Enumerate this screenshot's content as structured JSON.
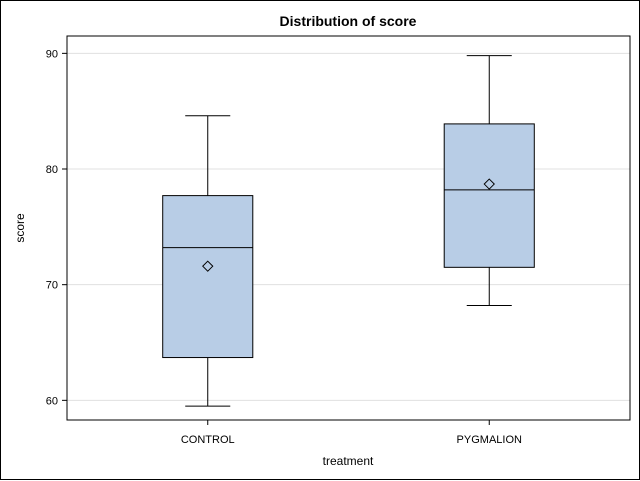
{
  "chart_data": {
    "type": "box",
    "title": "Distribution of score",
    "xlabel": "treatment",
    "ylabel": "score",
    "ylim": [
      58.3,
      91.5
    ],
    "yticks": [
      60,
      70,
      80,
      90
    ],
    "grid": true,
    "categories": [
      "CONTROL",
      "PYGMALION"
    ],
    "boxes": [
      {
        "category": "CONTROL",
        "min": 59.5,
        "q1": 63.7,
        "median": 73.2,
        "q3": 77.7,
        "max": 84.6,
        "mean": 71.6
      },
      {
        "category": "PYGMALION",
        "min": 68.2,
        "q1": 71.5,
        "median": 78.2,
        "q3": 83.9,
        "max": 89.8,
        "mean": 78.7
      }
    ],
    "colors": {
      "box_fill": "#b8cde6",
      "box_stroke": "#000000",
      "grid": "#e0e0e0",
      "plot_border": "#000000"
    },
    "mean_marker": "diamond"
  }
}
